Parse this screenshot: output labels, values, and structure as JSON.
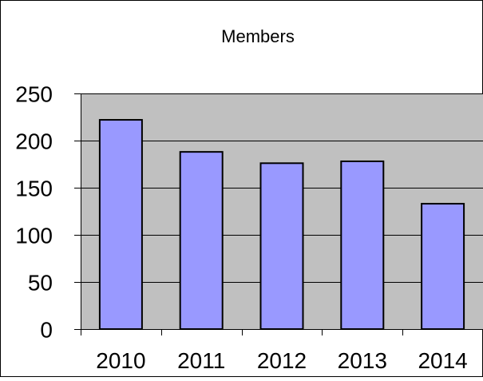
{
  "chart_data": {
    "type": "bar",
    "title": "Members",
    "categories": [
      "2010",
      "2011",
      "2012",
      "2013",
      "2014"
    ],
    "values": [
      222,
      188,
      176,
      178,
      133
    ],
    "ylim": [
      0,
      250
    ],
    "yticks": [
      0,
      50,
      100,
      150,
      200,
      250
    ],
    "xlabel": "",
    "ylabel": "",
    "grid": true,
    "legend": "none",
    "colors": {
      "bar_fill": "#9999ff",
      "bar_stroke": "#000000",
      "plot_background": "#c0c0c0",
      "gridline": "#000000"
    }
  }
}
